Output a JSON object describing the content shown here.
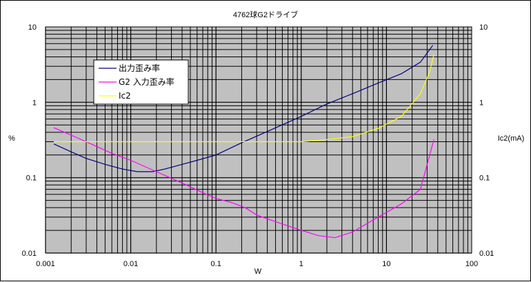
{
  "chart_data": {
    "type": "line",
    "title": "4762球G2ドライブ",
    "xlabel": "W",
    "ylabel_left": "%",
    "ylabel_right": "Ic2(mA)",
    "x_scale": "log",
    "y_scale": "log",
    "xlim": [
      0.001,
      100
    ],
    "ylim": [
      0.01,
      10
    ],
    "x_ticks": [
      "0.001",
      "0.01",
      "0.1",
      "1",
      "10",
      "100"
    ],
    "y_ticks_left": [
      "10",
      "1",
      "0.1",
      "0.01"
    ],
    "y_ticks_right": [
      "10",
      "1",
      "0.1",
      "0.01"
    ],
    "grid": true,
    "legend_position": "top-left",
    "series": [
      {
        "name": "出力歪み率",
        "color": "#000080",
        "x": [
          0.00125,
          0.002,
          0.003,
          0.005,
          0.008,
          0.012,
          0.018,
          0.025,
          0.04,
          0.06,
          0.1,
          0.2,
          0.4,
          1,
          2,
          4,
          8,
          15,
          25,
          35
        ],
        "y": [
          0.28,
          0.22,
          0.18,
          0.15,
          0.13,
          0.12,
          0.12,
          0.13,
          0.15,
          0.17,
          0.2,
          0.29,
          0.41,
          0.65,
          0.95,
          1.3,
          1.8,
          2.4,
          3.4,
          5.7
        ]
      },
      {
        "name": "G2 入力歪み率",
        "color": "#ff00ff",
        "x": [
          0.00125,
          0.003,
          0.006,
          0.01,
          0.02,
          0.04,
          0.07,
          0.1,
          0.15,
          0.22,
          0.3,
          0.5,
          1,
          1.6,
          2.5,
          4,
          8,
          15,
          25,
          30,
          36
        ],
        "y": [
          0.46,
          0.3,
          0.21,
          0.17,
          0.12,
          0.085,
          0.063,
          0.053,
          0.047,
          0.04,
          0.032,
          0.026,
          0.02,
          0.017,
          0.016,
          0.019,
          0.03,
          0.045,
          0.07,
          0.15,
          0.32
        ]
      },
      {
        "name": "Ic2",
        "color": "#ffff00",
        "x": [
          0.00125,
          0.01,
          0.1,
          1,
          2,
          4,
          8,
          15,
          25,
          32,
          36
        ],
        "y": [
          0.3,
          0.3,
          0.3,
          0.3,
          0.32,
          0.35,
          0.45,
          0.65,
          1.3,
          2.5,
          4.3
        ]
      }
    ]
  }
}
